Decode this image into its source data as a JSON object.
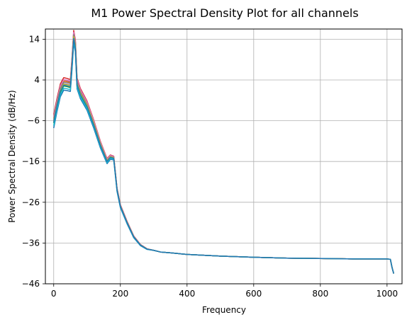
{
  "chart_data": {
    "type": "line",
    "title": "M1 Power Spectral Density Plot for all channels",
    "xlabel": "Frequency",
    "ylabel": "Power Spectral Density (dB/Hz)",
    "xlim": [
      -25,
      1045
    ],
    "ylim": [
      -46,
      16.5
    ],
    "x_ticks": [
      0,
      200,
      400,
      600,
      800,
      1000
    ],
    "y_ticks": [
      14,
      4,
      -6,
      -16,
      -26,
      -36,
      -46
    ],
    "grid": true,
    "legend": "none",
    "base_curve": {
      "x": [
        0,
        10,
        20,
        30,
        40,
        50,
        55,
        60,
        65,
        70,
        80,
        100,
        120,
        140,
        160,
        165,
        170,
        180,
        190,
        200,
        220,
        240,
        260,
        280,
        300,
        320,
        350,
        400,
        500,
        600,
        700,
        800,
        900,
        1000,
        1010,
        1015,
        1020
      ],
      "y": [
        -6,
        -2,
        1.5,
        3,
        2.8,
        2.5,
        8,
        14.3,
        12,
        3,
        0.5,
        -2.5,
        -7,
        -12,
        -16,
        -15.5,
        -15,
        -15.2,
        -23,
        -27,
        -31,
        -34.5,
        -36.5,
        -37.5,
        -37.8,
        -38.2,
        -38.4,
        -38.8,
        -39.2,
        -39.5,
        -39.7,
        -39.8,
        -39.9,
        -39.9,
        -40,
        -42,
        -43.5
      ]
    },
    "series": [
      {
        "color": "#1f77b4",
        "offsets": [
          -1.8,
          -1.3,
          -0.8,
          -0.4
        ],
        "spread": 0.1
      },
      {
        "color": "#ff7f0e",
        "offsets": [
          0.6,
          0.8,
          0.7,
          0.3
        ],
        "spread": 0.4
      },
      {
        "color": "#2ca02c",
        "offsets": [
          -0.6,
          -0.4,
          -0.2,
          0.0
        ],
        "spread": 0.2
      },
      {
        "color": "#d62728",
        "offsets": [
          1.5,
          1.6,
          1.2,
          0.5
        ],
        "spread": 0.6
      },
      {
        "color": "#9467bd",
        "offsets": [
          0.0,
          0.2,
          0.3,
          0.2
        ],
        "spread": 0.3
      },
      {
        "color": "#8c564b",
        "offsets": [
          1.1,
          1.0,
          0.9,
          0.4
        ],
        "spread": 0.7
      },
      {
        "color": "#e377c2",
        "offsets": [
          0.9,
          1.2,
          1.0,
          0.4
        ],
        "spread": 0.5
      },
      {
        "color": "#7f7f7f",
        "offsets": [
          0.3,
          0.6,
          0.5,
          0.2
        ],
        "spread": 0.5
      },
      {
        "color": "#bcbd22",
        "offsets": [
          -0.2,
          0.1,
          0.4,
          0.1
        ],
        "spread": 0.4
      },
      {
        "color": "#17becf",
        "offsets": [
          -1.2,
          -0.9,
          -0.4,
          -0.2
        ],
        "spread": 0.2
      },
      {
        "color": "#1f77b4",
        "offsets": [
          -0.4,
          -0.2,
          0.0,
          0.0
        ],
        "spread": 0.1
      }
    ]
  }
}
